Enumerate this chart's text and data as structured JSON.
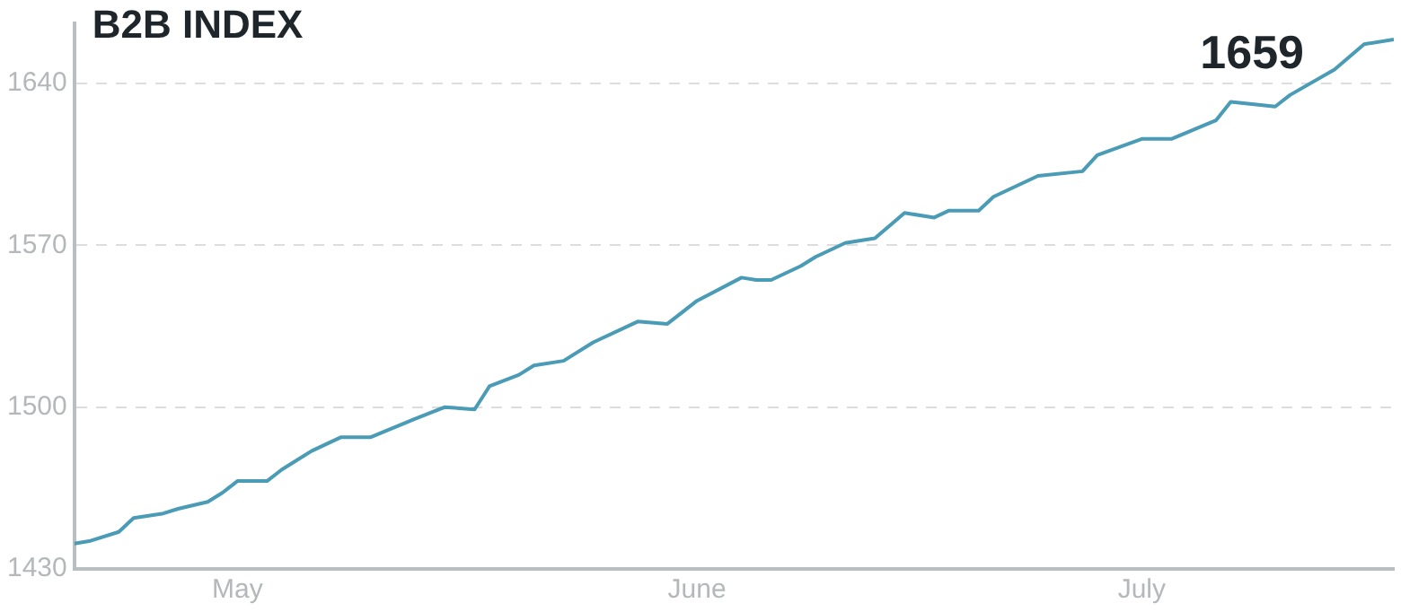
{
  "chart_data": {
    "type": "line",
    "title": "B2B INDEX",
    "x": [
      "--04-20",
      "--04-21",
      "--04-23",
      "--04-24",
      "--04-26",
      "--04-27",
      "--04-29",
      "--04-30",
      "--05-01",
      "--05-03",
      "--05-04",
      "--05-06",
      "--05-08",
      "--05-10",
      "--05-13",
      "--05-15",
      "--05-17",
      "--05-18",
      "--05-20",
      "--05-21",
      "--05-23",
      "--05-25",
      "--05-28",
      "--05-30",
      "--06-01",
      "--06-04",
      "--06-05",
      "--06-06",
      "--06-08",
      "--06-09",
      "--06-11",
      "--06-13",
      "--06-15",
      "--06-17",
      "--06-18",
      "--06-20",
      "--06-21",
      "--06-24",
      "--06-27",
      "--06-28",
      "--07-01",
      "--07-03",
      "--07-06",
      "--07-07",
      "--07-10",
      "--07-11",
      "--07-14",
      "--07-16",
      "--07-18"
    ],
    "series": [
      {
        "color": "#4a9bb5",
        "values": [
          1441,
          1442,
          1446,
          1452,
          1454,
          1456,
          1459,
          1463,
          1468,
          1468,
          1473,
          1481,
          1487,
          1487,
          1495,
          1500,
          1499,
          1509,
          1514,
          1518,
          1520,
          1528,
          1537,
          1536,
          1546,
          1556,
          1555,
          1555,
          1561,
          1565,
          1571,
          1573,
          1584,
          1582,
          1585,
          1585,
          1591,
          1600,
          1602,
          1609,
          1616,
          1616,
          1624,
          1632,
          1630,
          1635,
          1646,
          1657,
          1659
        ]
      }
    ],
    "annotations": [
      {
        "text": "1659",
        "x": "--07-18",
        "y": 1659
      }
    ],
    "xlim": [
      "--04-20",
      "--07-18"
    ],
    "xticks": [
      {
        "value": "--05-01",
        "label": "May"
      },
      {
        "value": "--06-01",
        "label": "June"
      },
      {
        "value": "--07-01",
        "label": "July"
      }
    ],
    "ylim": [
      1430,
      1666
    ],
    "yticks": [
      1430,
      1500,
      1570,
      1640
    ],
    "grid": "y",
    "legend": false,
    "marker": "none",
    "line_style": "solid"
  }
}
